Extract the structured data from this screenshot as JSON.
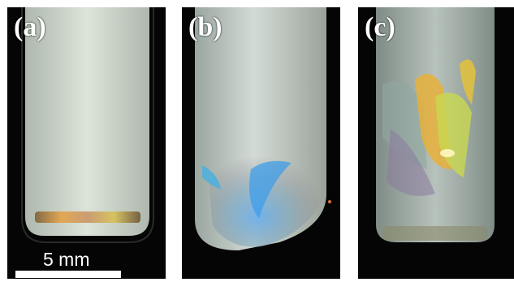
{
  "panels": [
    {
      "label": "(a)"
    },
    {
      "label": "(b)"
    },
    {
      "label": "(c)"
    }
  ],
  "scale_bar": {
    "text": "5 mm"
  },
  "colors": {
    "background": "#050505",
    "tube_fill": "#d5ddd2",
    "crystal_gold": "#e6b03a",
    "crystal_blue": "#3a9ee6",
    "crystal_green": "#b9e04a"
  }
}
